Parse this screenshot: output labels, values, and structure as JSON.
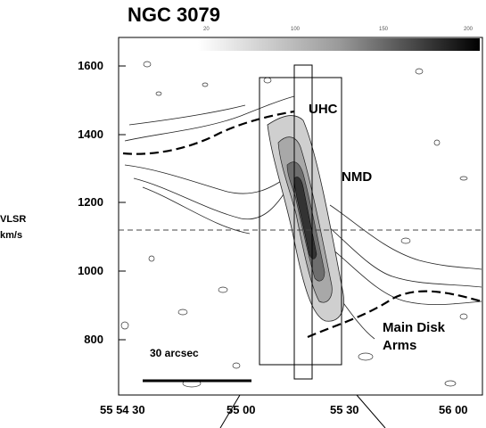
{
  "chart_data": {
    "type": "contour-position-velocity",
    "title": "NGC 3079",
    "ylabel_lines": [
      "VLSR",
      "km/s"
    ],
    "y_ticks": [
      {
        "label": "1600",
        "value": 1600
      },
      {
        "label": "1400",
        "value": 1400
      },
      {
        "label": "1200",
        "value": 1200
      },
      {
        "label": "1000",
        "value": 1000
      },
      {
        "label": "800",
        "value": 800
      }
    ],
    "x_ticks": [
      "55 54 30",
      "55 00",
      "55 30",
      "56 00"
    ],
    "colorbar_ticks": [
      "20",
      "100",
      "150",
      "200"
    ],
    "annotations": {
      "uhc": "UHC",
      "nmd": "NMD",
      "main_disk_arms_1": "Main Disk",
      "main_disk_arms_2": "Arms",
      "scale_bar": "30 arcsec"
    },
    "systemic_velocity": 1120,
    "ylim": [
      680,
      1680
    ]
  }
}
